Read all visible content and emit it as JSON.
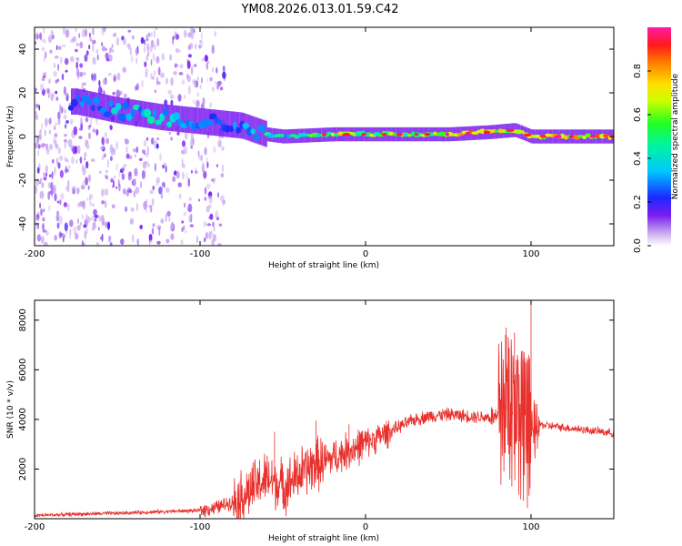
{
  "title": "YM08.2026.013.01.59.C42",
  "chart_data": [
    {
      "type": "heatmap",
      "name": "spectrogram",
      "xlabel": "Height of straight line (km)",
      "ylabel": "Frequency (Hz)",
      "xlim": [
        -200,
        150
      ],
      "ylim": [
        -50,
        50
      ],
      "xticks": [
        -200,
        -100,
        0,
        100
      ],
      "yticks": [
        -40,
        -20,
        0,
        20,
        40
      ],
      "colorbar": {
        "label": "Normalized spectral amplitude",
        "range": [
          0,
          1
        ],
        "ticks": [
          0.0,
          0.2,
          0.4,
          0.6,
          0.8
        ]
      },
      "description_points": [
        {
          "x": -175,
          "f": 16,
          "amp": 0.3
        },
        {
          "x": -150,
          "f": 12,
          "amp": 0.4
        },
        {
          "x": -125,
          "f": 9,
          "amp": 0.45
        },
        {
          "x": -100,
          "f": 7,
          "amp": 0.35
        },
        {
          "x": -75,
          "f": 5,
          "amp": 0.3
        },
        {
          "x": -60,
          "f": 1,
          "amp": 0.5
        },
        {
          "x": -50,
          "f": 0,
          "amp": 0.45
        },
        {
          "x": -20,
          "f": 1,
          "amp": 0.75
        },
        {
          "x": 0,
          "f": 1,
          "amp": 0.7
        },
        {
          "x": 50,
          "f": 1,
          "amp": 0.75
        },
        {
          "x": 75,
          "f": 2,
          "amp": 0.9
        },
        {
          "x": 90,
          "f": 3,
          "amp": 0.7
        },
        {
          "x": 100,
          "f": 0,
          "amp": 0.95
        },
        {
          "x": 130,
          "f": 0,
          "amp": 0.85
        },
        {
          "x": 150,
          "f": 0,
          "amp": 0.9
        }
      ]
    },
    {
      "type": "line",
      "name": "snr",
      "xlabel": "Height of straight line (km)",
      "ylabel": "SNR (10 * v/v)",
      "xlim": [
        -200,
        150
      ],
      "ylim": [
        0,
        8800
      ],
      "xticks": [
        -200,
        -100,
        0,
        100
      ],
      "yticks": [
        2000,
        4000,
        6000,
        8000
      ],
      "color": "#e8302c",
      "series": [
        {
          "name": "SNR",
          "x": [
            -200,
            -175,
            -150,
            -125,
            -100,
            -90,
            -80,
            -75,
            -70,
            -65,
            -60,
            -55,
            -50,
            -45,
            -40,
            -35,
            -30,
            -25,
            -20,
            -15,
            -10,
            -5,
            0,
            10,
            20,
            30,
            40,
            50,
            60,
            70,
            75,
            80,
            85,
            90,
            95,
            100,
            105,
            110,
            130,
            150
          ],
          "y": [
            130,
            180,
            220,
            280,
            330,
            450,
            700,
            900,
            1100,
            1400,
            1600,
            1500,
            1300,
            1500,
            1800,
            2000,
            2200,
            2300,
            2450,
            2600,
            2750,
            2900,
            3050,
            3350,
            3700,
            4000,
            4150,
            4200,
            4150,
            4100,
            4100,
            4050,
            4400,
            4500,
            3800,
            3300,
            3800,
            3750,
            3600,
            3450
          ],
          "spikes": [
            {
              "x": -55,
              "y": 3500
            },
            {
              "x": -30,
              "y": 3950
            },
            {
              "x": -10,
              "y": 3800
            },
            {
              "x": 85,
              "y": 7700
            },
            {
              "x": 90,
              "y": 7500
            },
            {
              "x": 100,
              "y": 8700
            }
          ]
        }
      ]
    }
  ],
  "colors": {
    "line": "#e8302c",
    "background": "#ffffff",
    "axis": "#000000"
  }
}
